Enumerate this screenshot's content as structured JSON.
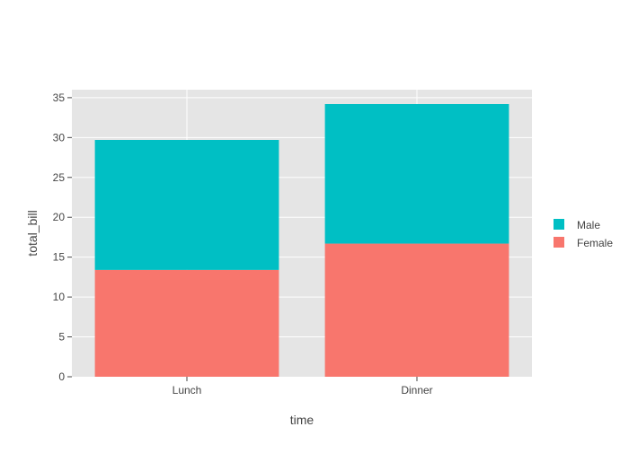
{
  "chart_data": {
    "type": "bar",
    "barmode": "stack",
    "categories": [
      "Lunch",
      "Dinner"
    ],
    "series": [
      {
        "name": "Female",
        "values": [
          13.4,
          16.7
        ],
        "color": "#F8766D"
      },
      {
        "name": "Male",
        "values": [
          16.3,
          17.5
        ],
        "color": "#00BFC4"
      }
    ],
    "xlabel": "time",
    "ylabel": "total_bill",
    "ylim": [
      0,
      36
    ],
    "yticks": [
      0,
      5,
      10,
      15,
      20,
      25,
      30,
      35
    ],
    "grid": true,
    "plot_background": "#E5E5E5",
    "grid_color": "#FFFFFF",
    "legend": {
      "placement": "right",
      "order": [
        "Male",
        "Female"
      ]
    }
  }
}
